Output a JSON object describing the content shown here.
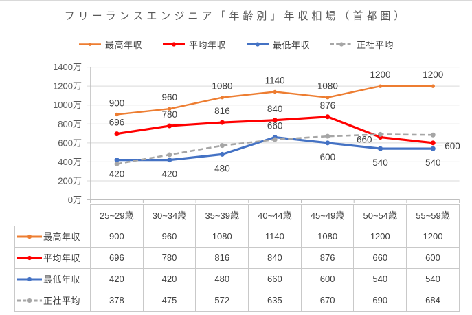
{
  "title": "フリーランスエンジニア「年齢別」年収相場（首都圏）",
  "chart_data": {
    "type": "line",
    "title": "フリーランスエンジニア「年齢別」年収相場（首都圏）",
    "legend_position": "top",
    "grid": true,
    "data_table_shown": true,
    "categories": [
      "25~29歳",
      "30~34歳",
      "35~39歳",
      "40~44歳",
      "45~49歳",
      "50~54歳",
      "55~59歳"
    ],
    "series": [
      {
        "key": "max-income",
        "name": "最高年収",
        "color": "#ED7D31",
        "line_style": "solid",
        "marker": "circle",
        "values": [
          900,
          960,
          1080,
          1140,
          1080,
          1200,
          1200
        ],
        "label_positions": [
          "above",
          "above",
          "above",
          "above",
          "above",
          "above",
          "above"
        ]
      },
      {
        "key": "avg-income",
        "name": "平均年収",
        "color": "#FF0000",
        "line_style": "solid",
        "marker": "circle",
        "values": [
          696,
          780,
          816,
          840,
          876,
          660,
          600
        ],
        "label_positions": [
          "above",
          "above",
          "above",
          "above",
          "above",
          "left",
          "right"
        ]
      },
      {
        "key": "min-income",
        "name": "最低年収",
        "color": "#4472C4",
        "line_style": "solid",
        "marker": "circle",
        "values": [
          420,
          420,
          480,
          660,
          600,
          540,
          540
        ],
        "label_positions": [
          "below",
          "below",
          "below",
          "above",
          "below",
          "below",
          "below"
        ]
      },
      {
        "key": "fulltime-avg",
        "name": "正社平均",
        "color": "#A6A6A6",
        "line_style": "dashed",
        "marker": "circle",
        "values": [
          378,
          475,
          572,
          635,
          670,
          690,
          684
        ],
        "label_positions": [
          "none",
          "none",
          "none",
          "none",
          "none",
          "none",
          "none"
        ]
      }
    ],
    "y_axis": {
      "min": 0,
      "max": 1400,
      "step": 200,
      "unit": "万",
      "tick_labels": [
        "0万",
        "200万",
        "400万",
        "600万",
        "800万",
        "1000万",
        "1200万",
        "1400万"
      ]
    },
    "x_axis": {
      "labels_shown_on_axis": false
    }
  },
  "colors": {
    "title_text": "#595959",
    "axis_text": "#595959",
    "label_text": "#404040",
    "grid_line": "#D9D9D9",
    "axis_line": "#BFBFBF",
    "table_border": "#C9C9C9",
    "background": "#FFFFFF"
  }
}
